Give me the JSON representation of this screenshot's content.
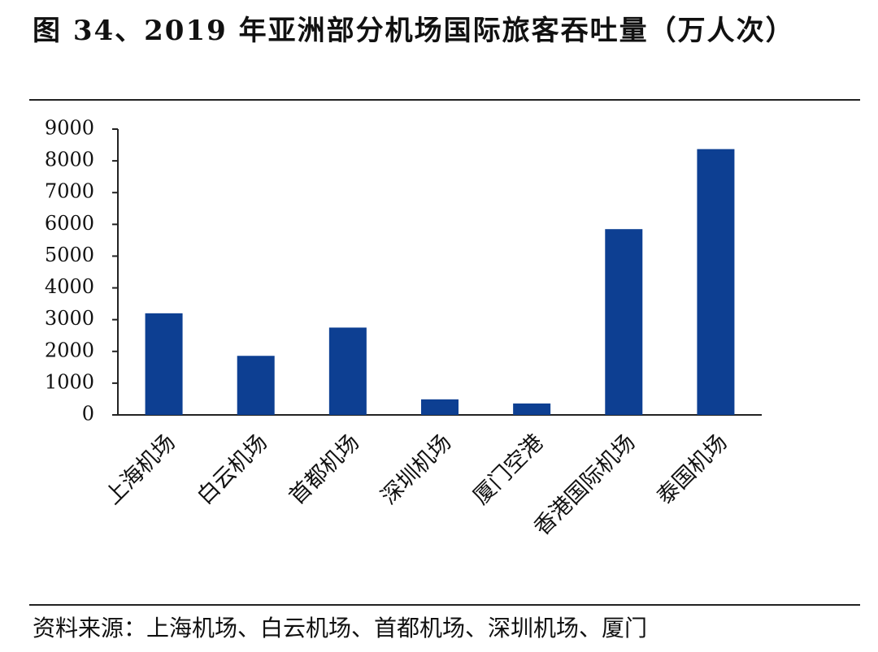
{
  "chart_data": {
    "type": "bar",
    "title": "图 34、2019 年亚洲部分机场国际旅客吞吐量（万人次）",
    "categories": [
      "上海机场",
      "白云机场",
      "首都机场",
      "深圳机场",
      "厦门空港",
      "香港国际机场",
      "泰国机场"
    ],
    "values": [
      3200,
      1860,
      2750,
      490,
      360,
      5850,
      8370
    ],
    "color": "#0d3f92",
    "ylim": [
      0,
      9000
    ],
    "yticks": [
      0,
      1000,
      2000,
      3000,
      4000,
      5000,
      6000,
      7000,
      8000,
      9000
    ],
    "grid": false,
    "source": "资料来源：上海机场、白云机场、首都机场、深圳机场、厦门"
  }
}
